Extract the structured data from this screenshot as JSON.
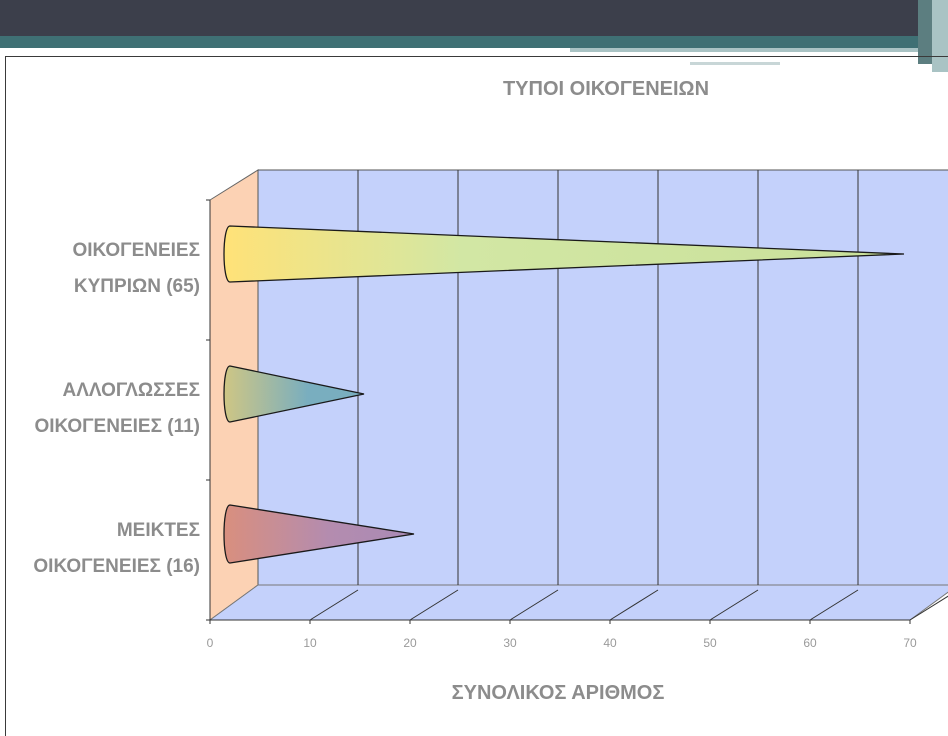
{
  "chart_data": {
    "type": "bar",
    "title": "ΤΥΠΟΙ ΟΙΚΟΓΕΝΕΙΩΝ",
    "xlabel": "ΣΥΝΟΛΙΚΟΣ ΑΡΙΘΜΟΣ",
    "ylabel": "",
    "orientation": "horizontal",
    "bar_shape": "cone",
    "three_d": true,
    "categories": [
      [
        "ΟΙΚΟΓΕΝΕΙΕΣ",
        "ΚΥΠΡΙΩΝ (65)"
      ],
      [
        "ΑΛΛΟΓΛΩΣΣΕΣ",
        "ΟΙΚΟΓΕΝΕΙΕΣ (11)"
      ],
      [
        "ΜΕΙΚΤΕΣ",
        "ΟΙΚΟΓΕΝΕΙΕΣ (16)"
      ]
    ],
    "values": [
      65,
      11,
      16
    ],
    "xlim": [
      0,
      70
    ],
    "xticks": [
      "0",
      "10",
      "20",
      "30",
      "40",
      "50",
      "60",
      "70"
    ],
    "grid": true,
    "legend": "none",
    "colors": {
      "back_wall": "#c4d1fb",
      "side_wall": "#fcd2b4",
      "floor": "#c4d1fb",
      "bars": [
        "#d2e7a4",
        "#79aebf",
        "#b48caf"
      ],
      "bar_highlights": [
        "#ffe278",
        "#cfc684",
        "#d98f7e"
      ]
    }
  },
  "theme": {
    "banner_dark": "#3c3f4b",
    "banner_teal": "#3f7074",
    "banner_light": "#a9c3c4"
  }
}
